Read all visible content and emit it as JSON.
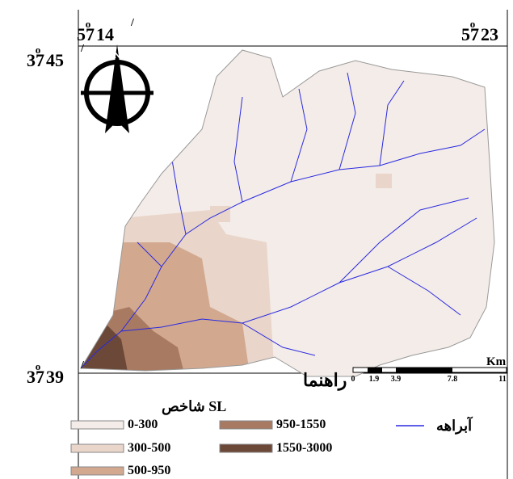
{
  "map_frame": {
    "degree_symbol": "o",
    "minute_symbol": "/",
    "top_labels": [
      {
        "degrees": "57",
        "minutes": "14"
      },
      {
        "degrees": "57",
        "minutes": "23"
      }
    ],
    "left_labels": [
      {
        "degrees": "37",
        "minutes": "45"
      },
      {
        "degrees": "37",
        "minutes": "39"
      }
    ],
    "north": "N"
  },
  "scale_bar": {
    "unit": "Km",
    "ticks": [
      "0",
      "1.9",
      "3.9",
      "7.8",
      "11"
    ]
  },
  "legend": {
    "title": "راهنما",
    "index_title": "شاخص SL",
    "classes": [
      {
        "label": "0-300",
        "color": "#f4ece8"
      },
      {
        "label": "300-500",
        "color": "#e9d5ca"
      },
      {
        "label": "500-950",
        "color": "#d2a98f"
      },
      {
        "label": "950-1550",
        "color": "#a87a62"
      },
      {
        "label": "1550-3000",
        "color": "#6b4838"
      }
    ],
    "stream": {
      "label": "آبراهه",
      "color": "#2a2ae0"
    }
  }
}
